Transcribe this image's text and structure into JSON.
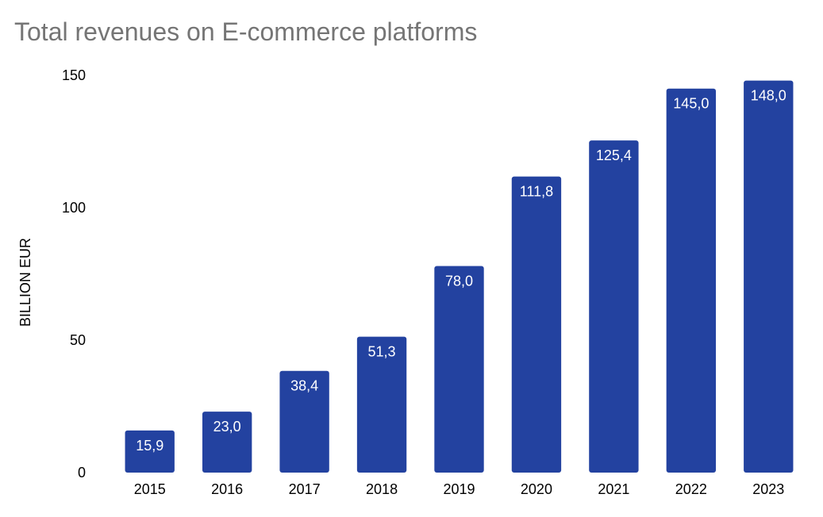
{
  "chart_data": {
    "type": "bar",
    "title": "Total revenues on E-commerce platforms",
    "xlabel": "",
    "ylabel": "BILLION EUR",
    "categories": [
      "2015",
      "2016",
      "2017",
      "2018",
      "2019",
      "2020",
      "2021",
      "2022",
      "2023"
    ],
    "values": [
      15.9,
      23.0,
      38.4,
      51.3,
      78.0,
      111.8,
      125.4,
      145.0,
      148.0
    ],
    "data_labels": [
      "15,9",
      "23,0",
      "38,4",
      "51,3",
      "78,0",
      "111,8",
      "125,4",
      "145,0",
      "148,0"
    ],
    "ylim": [
      0,
      150
    ],
    "yticks": [
      {
        "value": 0,
        "label": "0"
      },
      {
        "value": 50,
        "label": "50"
      },
      {
        "value": 100,
        "label": "100"
      },
      {
        "value": 150,
        "label": "150"
      }
    ],
    "grid": false,
    "legend": "none",
    "bar_color": "#2342a0"
  }
}
